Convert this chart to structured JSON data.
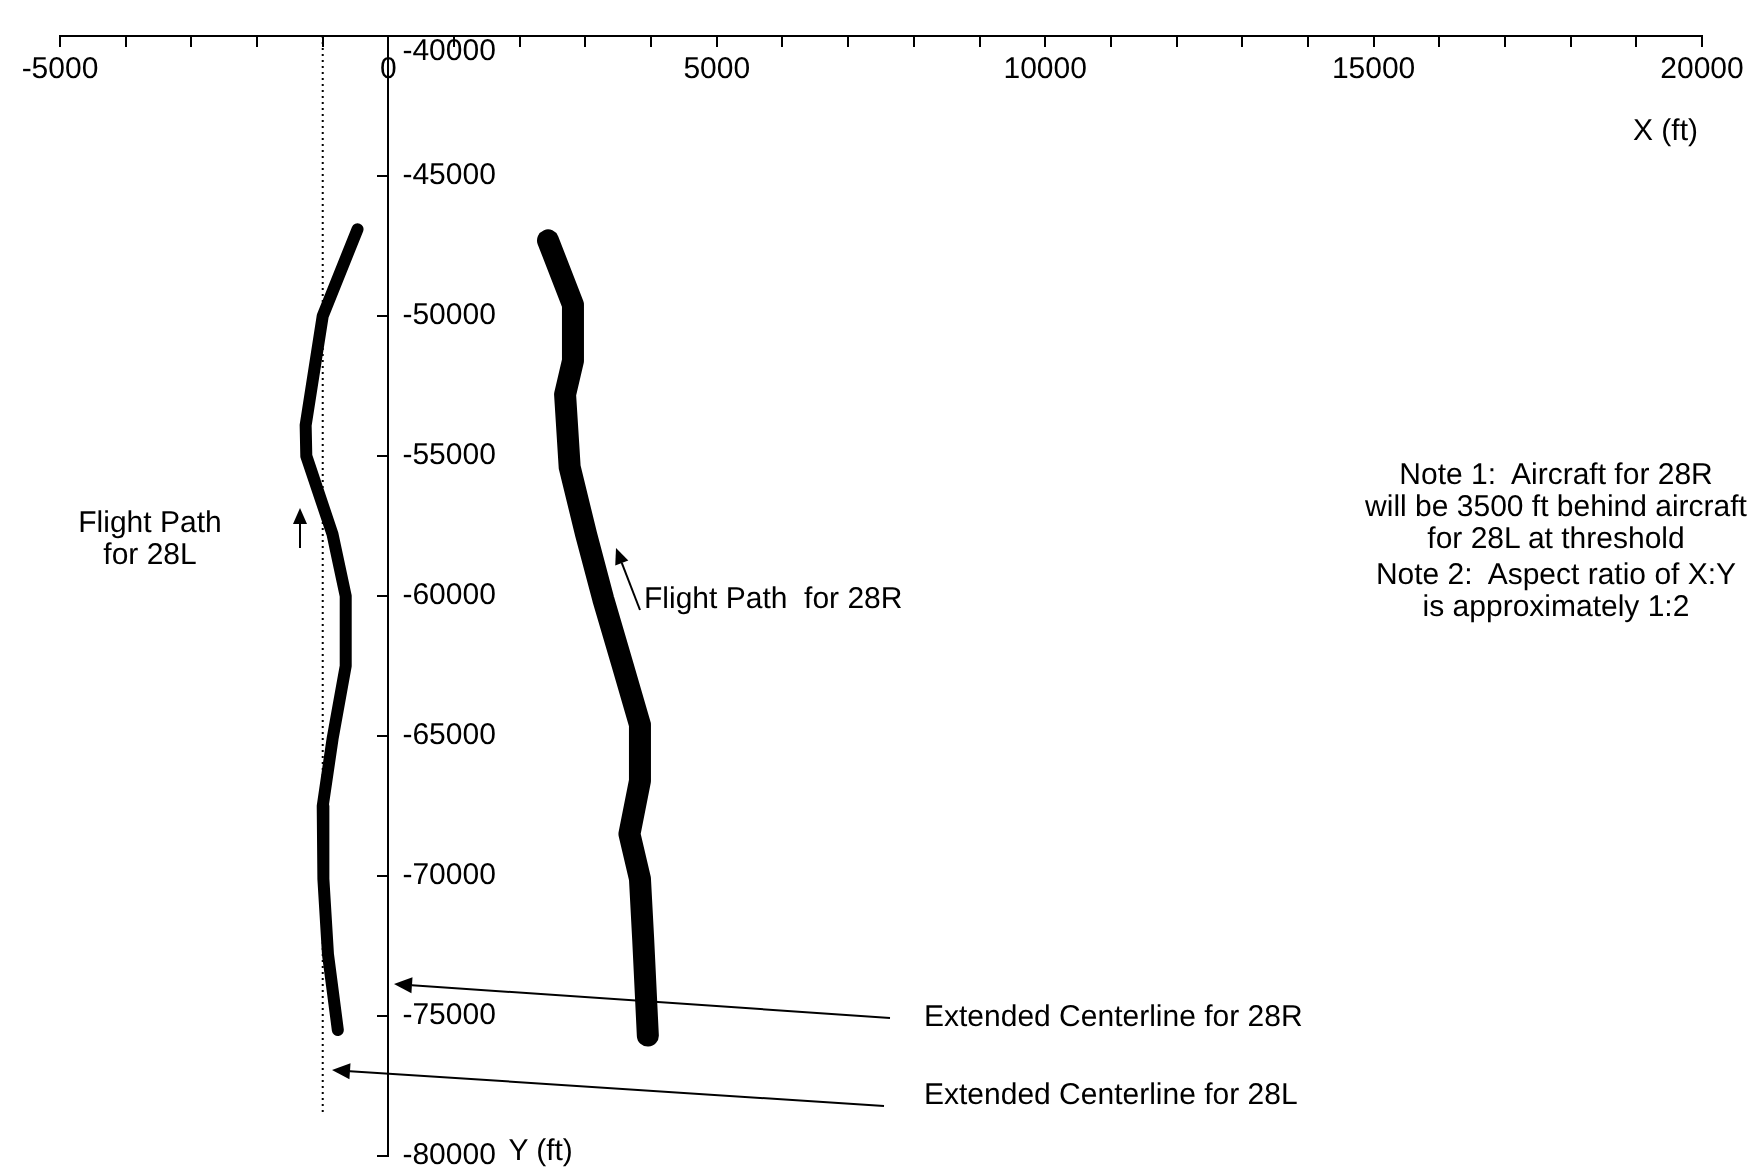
{
  "chart_data": {
    "type": "line",
    "xlabel": "X (ft)",
    "ylabel": "Y (ft)",
    "xlim": [
      -5000,
      20000
    ],
    "ylim": [
      -80000,
      -40000
    ],
    "xticks": [
      -5000,
      {
        "value": -4000,
        "label": null
      },
      {
        "value": -3000,
        "label": null
      },
      {
        "value": -2000,
        "label": null
      },
      {
        "value": -1000,
        "label": null
      },
      0,
      {
        "value": 1000,
        "label": null
      },
      {
        "value": 2000,
        "label": null
      },
      {
        "value": 3000,
        "label": null
      },
      {
        "value": 4000,
        "label": null
      },
      5000,
      {
        "value": 6000,
        "label": null
      },
      {
        "value": 7000,
        "label": null
      },
      {
        "value": 8000,
        "label": null
      },
      {
        "value": 9000,
        "label": null
      },
      10000,
      {
        "value": 11000,
        "label": null
      },
      {
        "value": 12000,
        "label": null
      },
      {
        "value": 13000,
        "label": null
      },
      {
        "value": 14000,
        "label": null
      },
      15000,
      {
        "value": 16000,
        "label": null
      },
      {
        "value": 17000,
        "label": null
      },
      {
        "value": 18000,
        "label": null
      },
      {
        "value": 19000,
        "label": null
      },
      20000
    ],
    "yticks": [
      -80000,
      -75000,
      -70000,
      -65000,
      -60000,
      -55000,
      -50000,
      -45000,
      -40000
    ],
    "grid": false,
    "legend": false,
    "marker": "none",
    "line_style": "solid",
    "series": [
      {
        "color": "#000000",
        "x": [
          -470,
          -1000,
          -1260,
          -1250,
          -850,
          -650,
          -650,
          -850,
          -1000,
          -990,
          -920,
          -770
        ],
        "values": [
          -46900,
          -50000,
          -53900,
          -55000,
          -57800,
          -60000,
          -62500,
          -65100,
          -67500,
          -70100,
          -72800,
          -75500
        ]
      },
      {
        "color": "#000000",
        "x": [
          2430,
          2810,
          2810,
          2690,
          2760,
          3010,
          3270,
          3570,
          3830,
          3830,
          3670,
          3830,
          3880,
          3950
        ],
        "values": [
          -47300,
          -49600,
          -51600,
          -52800,
          -55400,
          -57800,
          -60100,
          -62500,
          -64600,
          -66600,
          -68500,
          -70100,
          -72300,
          -75700
        ]
      }
    ],
    "ref_lines": [
      {
        "axis": "x",
        "value": -1000,
        "line_style": "dotted",
        "color": "#000000"
      }
    ],
    "annotations": [
      "Note 1:  Aircraft for 28R\nwill be 3500 ft behind aircraft\nfor 28L at threshold",
      "Note 2:  Aspect ratio of X:Y\nis approximately 1:2",
      "Flight Path\nfor 28L",
      "Flight Path  for 28R",
      "Extended Centerline for 28R",
      "Extended Centerline for 28L"
    ]
  }
}
